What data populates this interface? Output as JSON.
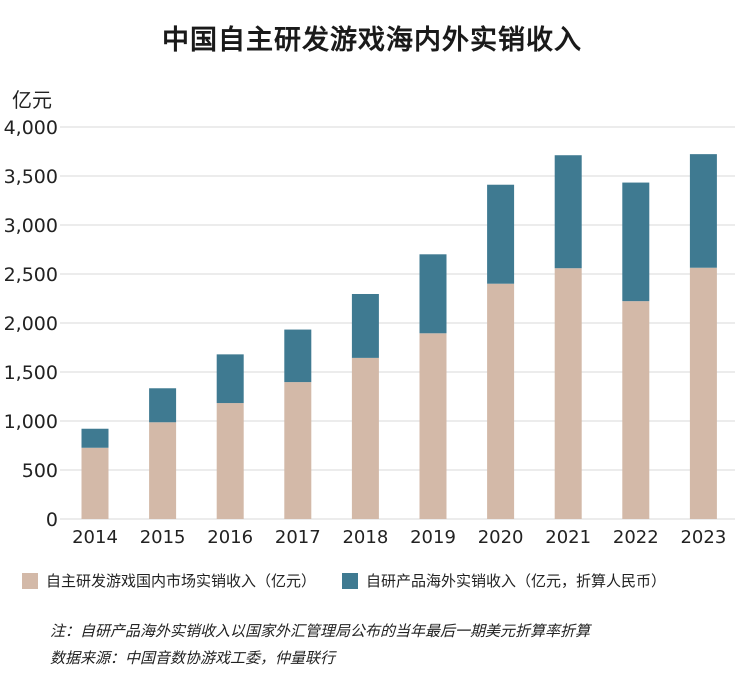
{
  "chart_data": {
    "type": "bar",
    "stacked": true,
    "title": "中国自主研发游戏海内外实销收入",
    "ylabel": "亿元",
    "xlabel": "",
    "ylim": [
      0,
      4000
    ],
    "yticks": [
      0,
      500,
      1000,
      1500,
      2000,
      2500,
      3000,
      3500,
      4000
    ],
    "ytick_labels": [
      "0",
      "500",
      "1,000",
      "1,500",
      "2,000",
      "2,500",
      "3,000",
      "3,500",
      "4,000"
    ],
    "categories": [
      "2014",
      "2015",
      "2016",
      "2017",
      "2018",
      "2019",
      "2020",
      "2021",
      "2022",
      "2023"
    ],
    "series": [
      {
        "name": "自主研发游戏国内市场实销收入（亿元）",
        "color": "#d3b9a8",
        "values": [
          727,
          987,
          1183,
          1397,
          1644,
          1895,
          2401,
          2559,
          2223,
          2564
        ]
      },
      {
        "name": "自研产品海外实销收入（亿元，折算人民币）",
        "color": "#3f7a91",
        "values": [
          194,
          347,
          497,
          536,
          652,
          806,
          1010,
          1153,
          1210,
          1159
        ]
      }
    ],
    "grid": true,
    "legend": "bottom"
  },
  "notes": {
    "line1": "注：自研产品海外实销收入以国家外汇管理局公布的当年最后一期美元折算率折算",
    "line2": "数据来源：中国音数协游戏工委，仲量联行"
  }
}
